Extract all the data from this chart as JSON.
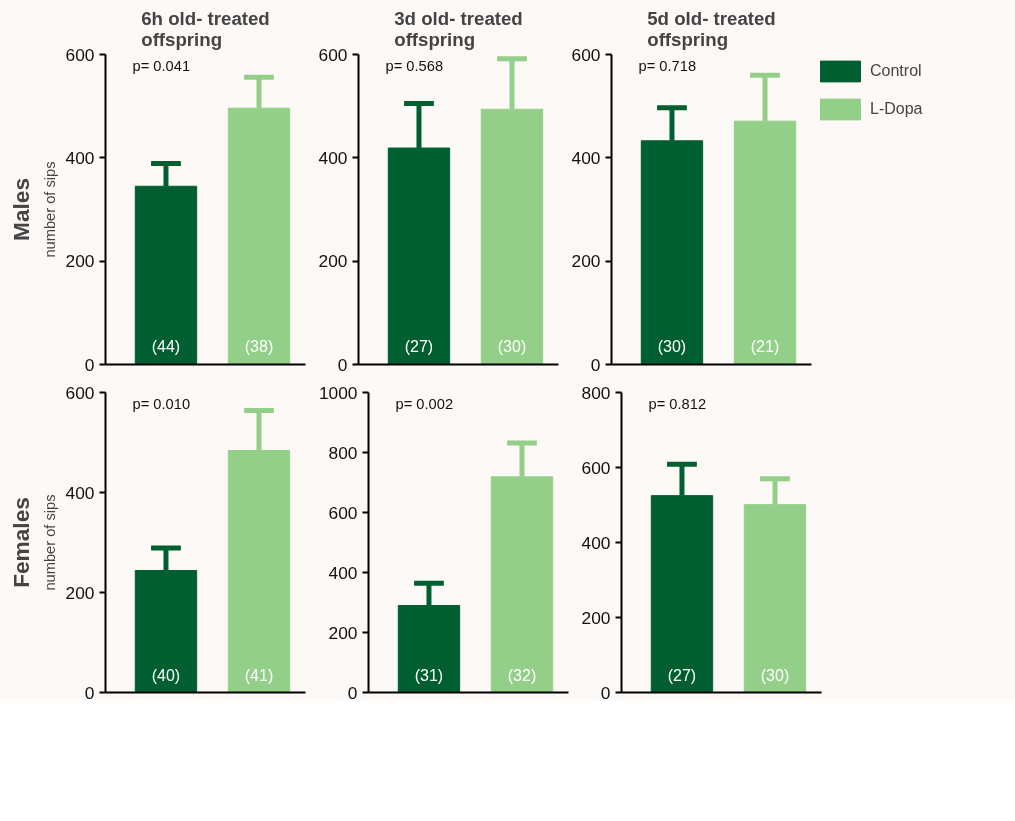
{
  "chart_data": [
    {
      "type": "bar",
      "title": "6h old- treated offspring",
      "ylabel": "number of sips",
      "annotations": [
        "p= 0.041",
        "(44)",
        "(38)",
        "Males"
      ],
      "categories": [
        null,
        null
      ],
      "ylim": [
        0,
        600
      ],
      "yticks": [
        0,
        200,
        400,
        600
      ],
      "tick_labels": "y",
      "legend": false,
      "grid": false,
      "colors": [
        "#005f30",
        "#94cf8a"
      ],
      "values": [
        345,
        496
      ],
      "errors": [
        [
          345,
          389
        ],
        [
          496,
          556
        ]
      ]
    },
    {
      "type": "bar",
      "title": "3d old- treated offspring",
      "annotations": [
        "p= 0.568",
        "(27)",
        "(30)"
      ],
      "categories": [
        null,
        null
      ],
      "ylim": [
        0,
        600
      ],
      "yticks": [
        0,
        200,
        400,
        600
      ],
      "tick_labels": "y",
      "legend": false,
      "grid": false,
      "colors": [
        "#005f30",
        "#94cf8a"
      ],
      "values": [
        419,
        494
      ],
      "errors": [
        [
          419,
          505
        ],
        [
          494,
          592
        ]
      ]
    },
    {
      "type": "bar",
      "title": "5d old- treated offspring",
      "annotations": [
        "p= 0.718",
        "(30)",
        "(21)"
      ],
      "categories": [
        null,
        null
      ],
      "ylim": [
        0,
        600
      ],
      "yticks": [
        0,
        200,
        400,
        600
      ],
      "tick_labels": "y",
      "legend": "right",
      "grid": false,
      "series": [
        {
          "name": "Control",
          "color": "#005f30",
          "values": [
            433,
            null
          ],
          "errors": [
            [
              433,
              497
            ],
            null
          ]
        },
        {
          "name": "L-Dopa",
          "color": "#94cf8a",
          "values": [
            null,
            471
          ],
          "errors": [
            null,
            [
              471,
              560
            ]
          ]
        }
      ]
    },
    {
      "type": "bar",
      "ylabel": "number of sips",
      "annotations": [
        "p= 0.010",
        "(40)",
        "(41)",
        "Females"
      ],
      "categories": [
        null,
        null
      ],
      "ylim": [
        0,
        600
      ],
      "yticks": [
        0,
        200,
        400,
        600
      ],
      "tick_labels": "y",
      "legend": false,
      "grid": false,
      "colors": [
        "#005f30",
        "#94cf8a"
      ],
      "values": [
        244,
        484
      ],
      "errors": [
        [
          244,
          289
        ],
        [
          484,
          564
        ]
      ]
    },
    {
      "type": "bar",
      "annotations": [
        "p= 0.002",
        "(31)",
        "(32)"
      ],
      "categories": [
        null,
        null
      ],
      "ylim": [
        0,
        1000
      ],
      "yticks": [
        0,
        200,
        400,
        600,
        800,
        1000
      ],
      "tick_labels": "y",
      "legend": false,
      "grid": false,
      "colors": [
        "#005f30",
        "#94cf8a"
      ],
      "values": [
        290,
        719
      ],
      "errors": [
        [
          290,
          364
        ],
        [
          719,
          832
        ]
      ]
    },
    {
      "type": "bar",
      "annotations": [
        "p= 0.812",
        "(27)",
        "(30)"
      ],
      "categories": [
        null,
        null
      ],
      "ylim": [
        0,
        800
      ],
      "yticks": [
        0,
        200,
        400,
        600,
        800
      ],
      "tick_labels": "y",
      "legend": false,
      "grid": false,
      "colors": [
        "#005f30",
        "#94cf8a"
      ],
      "values": [
        525,
        501
      ],
      "errors": [
        [
          525,
          609
        ],
        [
          501,
          570
        ]
      ]
    }
  ]
}
